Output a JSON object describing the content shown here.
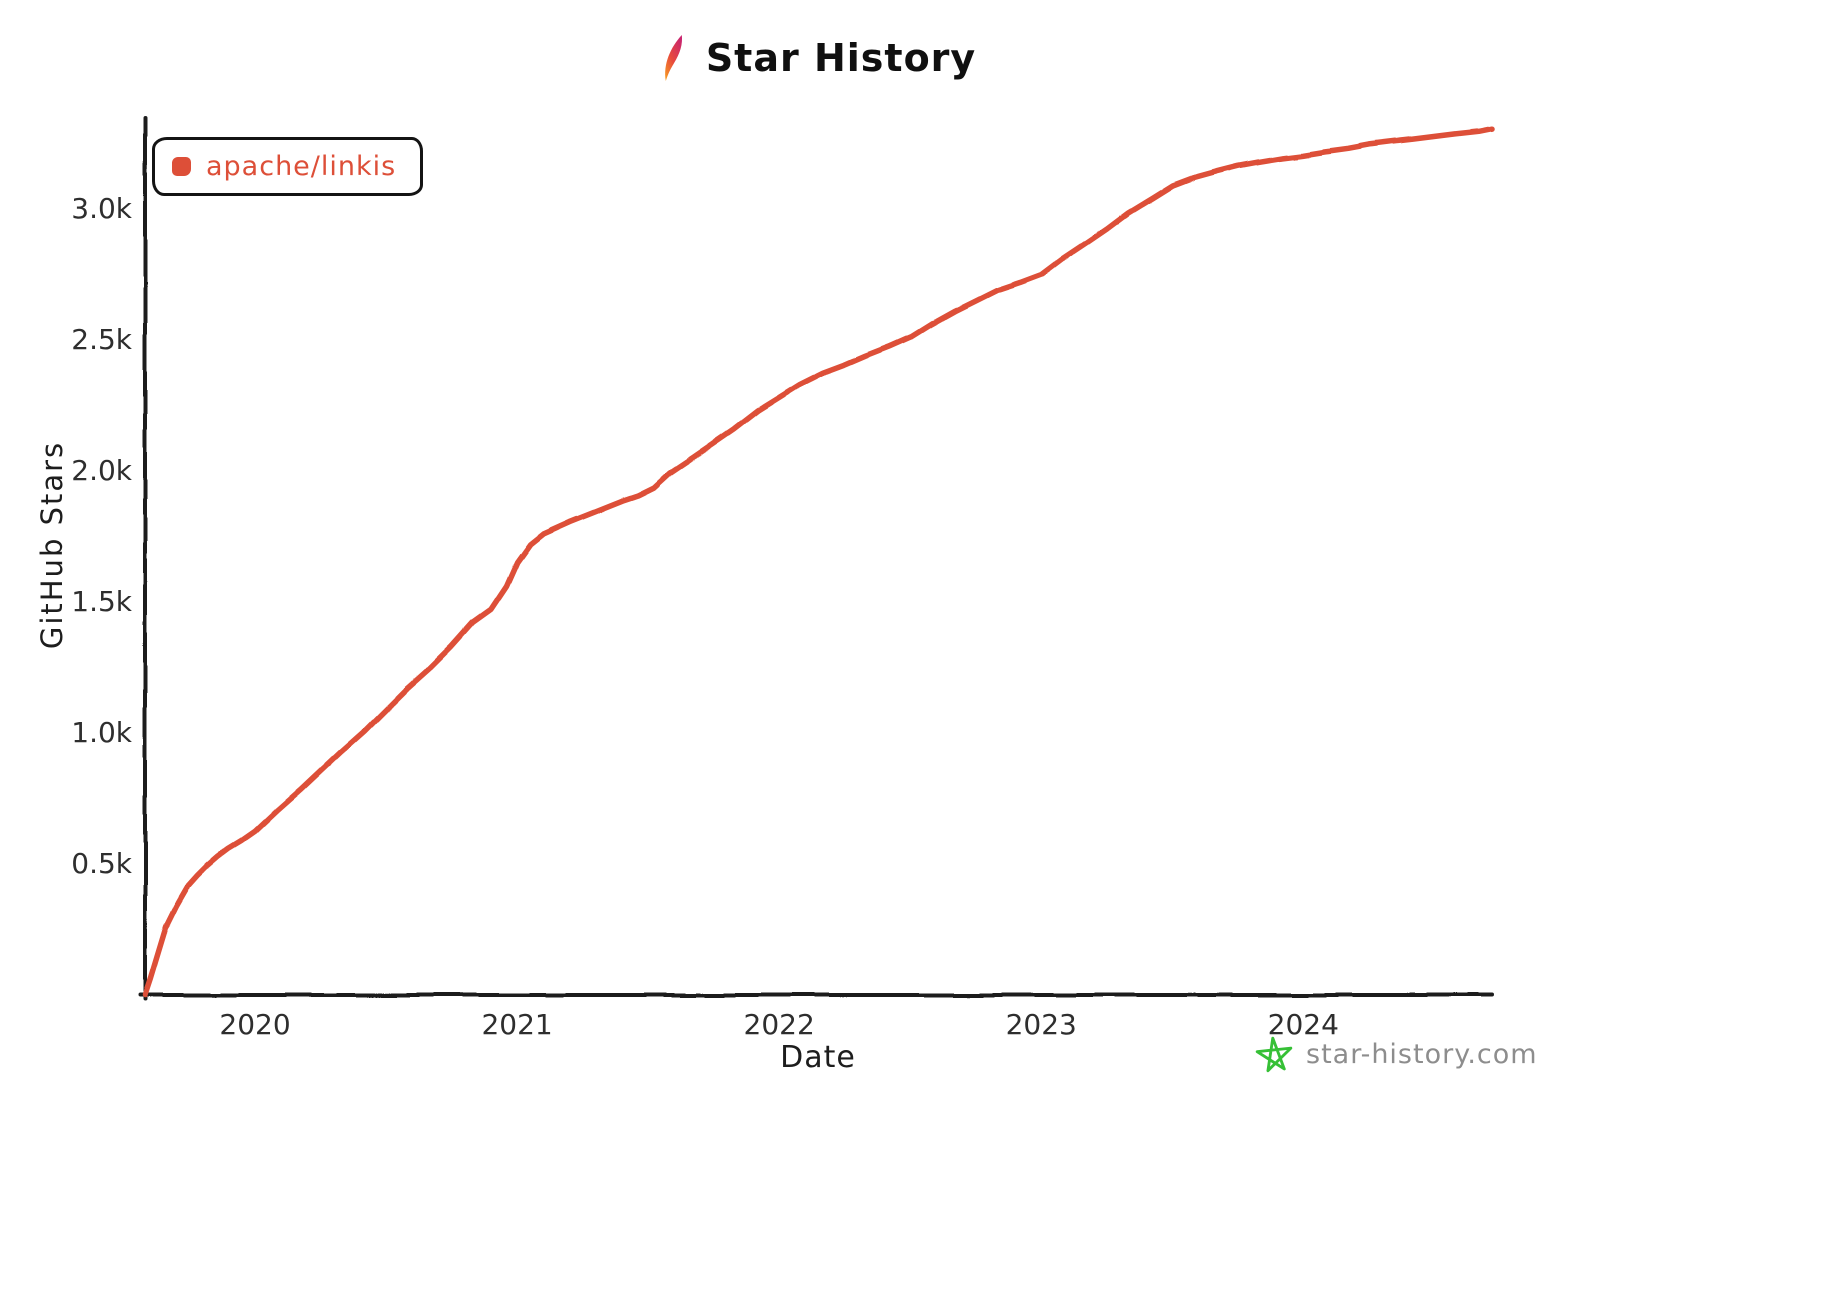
{
  "header": {
    "title": "Star History"
  },
  "legend": {
    "items": [
      {
        "label": "apache/linkis",
        "color": "#dd4f38"
      }
    ]
  },
  "watermark": {
    "label": "star-history.com",
    "icon_color": "#36c036",
    "text_color": "#8d8d8d"
  },
  "chart_data": {
    "type": "line",
    "title": "Star History",
    "xlabel": "Date",
    "ylabel": "GitHub Stars",
    "grid": false,
    "legend_position": "top-left",
    "xlim": [
      2019.58,
      2024.72
    ],
    "ylim": [
      0,
      3340
    ],
    "x_ticks": [
      {
        "value": 2020,
        "label": "2020"
      },
      {
        "value": 2021,
        "label": "2021"
      },
      {
        "value": 2022,
        "label": "2022"
      },
      {
        "value": 2023,
        "label": "2023"
      },
      {
        "value": 2024,
        "label": "2024"
      }
    ],
    "y_ticks": [
      {
        "value": 500,
        "label": "0.5k"
      },
      {
        "value": 1000,
        "label": "1.0k"
      },
      {
        "value": 1500,
        "label": "1.5k"
      },
      {
        "value": 2000,
        "label": "2.0k"
      },
      {
        "value": 2500,
        "label": "2.5k"
      },
      {
        "value": 3000,
        "label": "3.0k"
      }
    ],
    "series": [
      {
        "name": "apache/linkis",
        "color": "#dd4f38",
        "x": [
          2019.58,
          2019.6,
          2019.63,
          2019.66,
          2019.7,
          2019.74,
          2019.78,
          2019.82,
          2019.86,
          2019.9,
          2019.95,
          2020.0,
          2020.08,
          2020.17,
          2020.25,
          2020.33,
          2020.42,
          2020.5,
          2020.58,
          2020.67,
          2020.75,
          2020.83,
          2020.9,
          2020.96,
          2021.0,
          2021.05,
          2021.1,
          2021.2,
          2021.3,
          2021.4,
          2021.46,
          2021.52,
          2021.58,
          2021.67,
          2021.75,
          2021.83,
          2021.92,
          2022.0,
          2022.08,
          2022.17,
          2022.25,
          2022.33,
          2022.42,
          2022.5,
          2022.58,
          2022.67,
          2022.75,
          2022.83,
          2022.92,
          2023.0,
          2023.08,
          2023.17,
          2023.25,
          2023.33,
          2023.42,
          2023.5,
          2023.58,
          2023.67,
          2023.75,
          2023.83,
          2023.92,
          2024.0,
          2024.08,
          2024.17,
          2024.25,
          2024.33,
          2024.42,
          2024.5,
          2024.58,
          2024.67,
          2024.72
        ],
        "y": [
          0,
          60,
          160,
          260,
          340,
          410,
          455,
          495,
          530,
          560,
          590,
          625,
          700,
          780,
          855,
          930,
          1010,
          1090,
          1170,
          1250,
          1330,
          1420,
          1470,
          1560,
          1650,
          1720,
          1760,
          1805,
          1845,
          1885,
          1905,
          1935,
          1990,
          2050,
          2105,
          2160,
          2230,
          2280,
          2330,
          2375,
          2405,
          2440,
          2475,
          2510,
          2560,
          2610,
          2650,
          2690,
          2720,
          2750,
          2810,
          2870,
          2925,
          2985,
          3040,
          3090,
          3120,
          3145,
          3165,
          3180,
          3195,
          3205,
          3218,
          3230,
          3245,
          3255,
          3265,
          3275,
          3285,
          3295,
          3305
        ]
      }
    ]
  }
}
